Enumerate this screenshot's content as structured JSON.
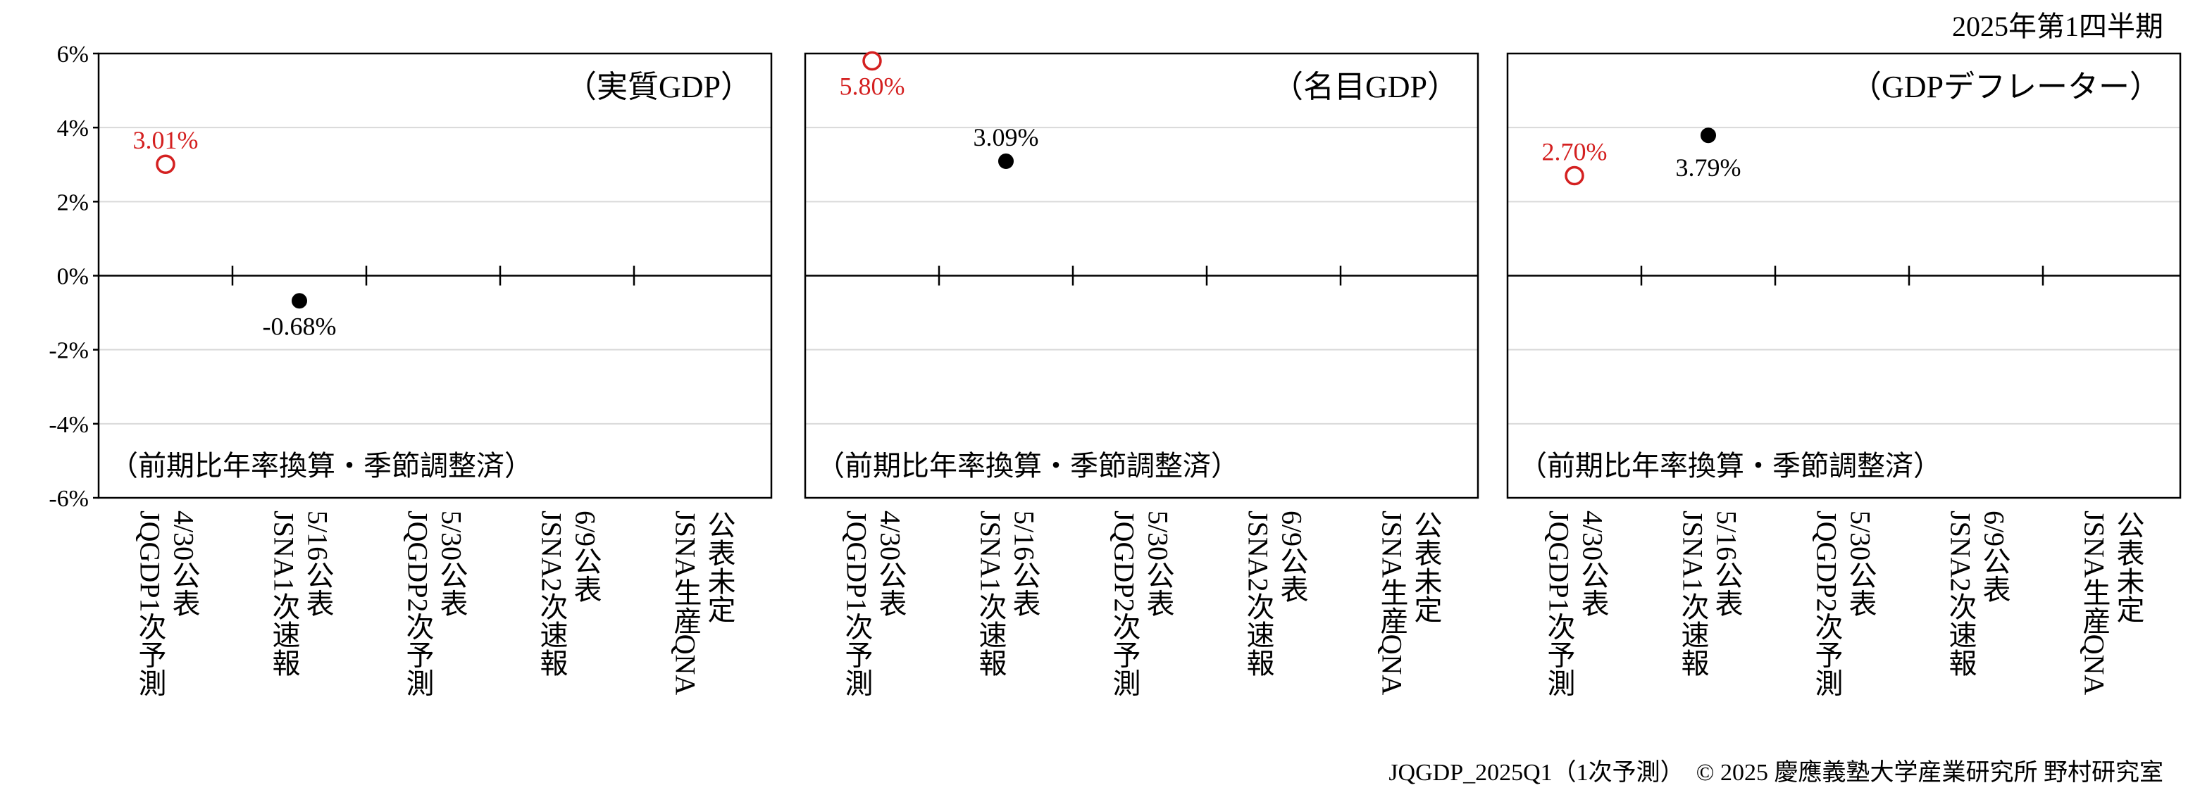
{
  "header": {
    "period": "2025年第1四半期"
  },
  "footer": {
    "source": "JQGDP_2025Q1（1次予測）　© 2025 慶應義塾大学産業研究所 野村研究室"
  },
  "colors": {
    "forecast": "#d42020",
    "official": "#000000",
    "axis": "#000000",
    "grid": "#d9d9d9"
  },
  "chart_data": {
    "type": "scatter",
    "ylim": [
      -6,
      6
    ],
    "yticks": [
      6,
      4,
      2,
      0,
      -2,
      -4,
      -6
    ],
    "ytick_labels": [
      "6%",
      "4%",
      "2%",
      "0%",
      "-2%",
      "-4%",
      "-6%"
    ],
    "grid": true,
    "categories": [
      "4/30公表\nJQGDP1次予測",
      "5/16公表\nJSNA1次速報",
      "5/30公表\nJQGDP2次予測",
      "6/9公表\nJSNA2次速報",
      "公表未定\nJSNA生産QNA"
    ],
    "note": "（前期比年率換算・季節調整済）",
    "panels": [
      {
        "title": "（実質GDP）",
        "points": [
          {
            "category_index": 0,
            "value": 3.01,
            "label": "3.01%",
            "kind": "forecast"
          },
          {
            "category_index": 1,
            "value": -0.68,
            "label": "-0.68%",
            "kind": "official"
          }
        ]
      },
      {
        "title": "（名目GDP）",
        "points": [
          {
            "category_index": 0,
            "value": 5.8,
            "label": "5.80%",
            "kind": "forecast"
          },
          {
            "category_index": 1,
            "value": 3.09,
            "label": "3.09%",
            "kind": "official"
          }
        ]
      },
      {
        "title": "（GDPデフレーター）",
        "points": [
          {
            "category_index": 0,
            "value": 2.7,
            "label": "2.70%",
            "kind": "forecast"
          },
          {
            "category_index": 1,
            "value": 3.79,
            "label": "3.79%",
            "kind": "official"
          }
        ]
      }
    ]
  }
}
